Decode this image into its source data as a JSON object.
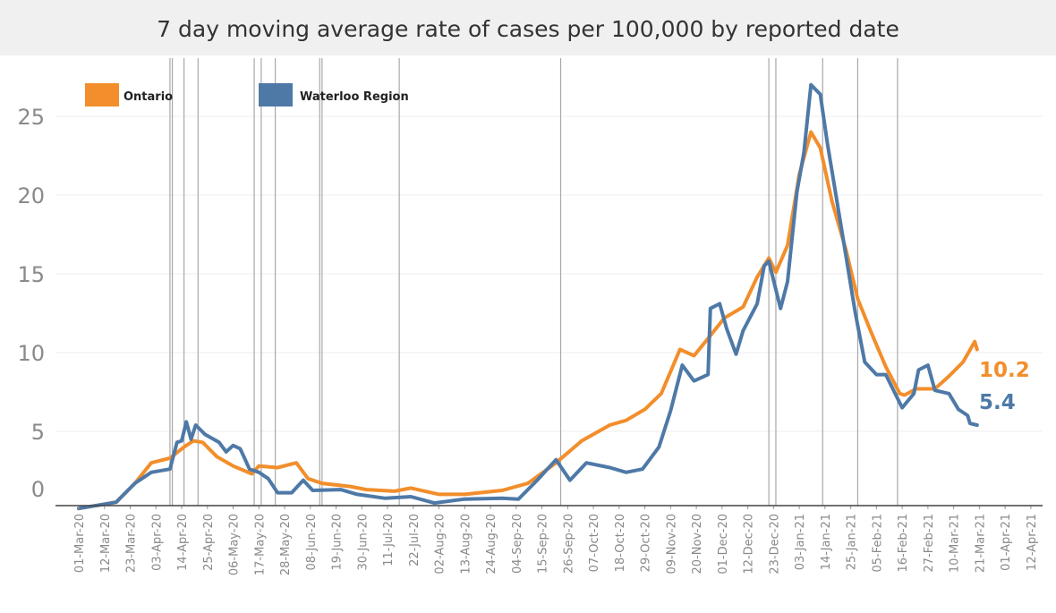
{
  "chart_data": {
    "type": "line",
    "title": "7 day moving average rate of cases per 100,000 by reported date",
    "xlabel": "",
    "ylabel": "",
    "ylim": [
      -0.3,
      27.5
    ],
    "xlim": [
      "2020-02-25",
      "2021-04-20"
    ],
    "yticks": [
      0,
      5,
      10,
      15,
      20,
      25
    ],
    "xticks": [
      "01-Mar-20",
      "12-Mar-20",
      "23-Mar-20",
      "03-Apr-20",
      "14-Apr-20",
      "25-Apr-20",
      "06-May-20",
      "17-May-20",
      "28-May-20",
      "08-Jun-20",
      "19-Jun-20",
      "30-Jun-20",
      "11-Jul-20",
      "22-Jul-20",
      "02-Aug-20",
      "13-Aug-20",
      "24-Aug-20",
      "04-Sep-20",
      "15-Sep-20",
      "26-Sep-20",
      "07-Oct-20",
      "18-Oct-20",
      "29-Oct-20",
      "09-Nov-20",
      "20-Nov-20",
      "01-Dec-20",
      "12-Dec-20",
      "23-Dec-20",
      "03-Jan-21",
      "14-Jan-21",
      "25-Jan-21",
      "05-Feb-21",
      "16-Feb-21",
      "27-Feb-21",
      "10-Mar-21",
      "21-Mar-21",
      "01-Apr-21",
      "12-Apr-21"
    ],
    "grid": "horizontal",
    "legend_position": "top-left",
    "reference_lines": [
      "2020-04-09",
      "2020-04-10",
      "2020-04-15",
      "2020-04-21",
      "2020-05-15",
      "2020-05-18",
      "2020-05-24",
      "2020-06-12",
      "2020-06-13",
      "2020-07-16",
      "2020-09-23",
      "2020-12-21",
      "2020-12-24",
      "2021-01-13",
      "2021-01-28",
      "2021-02-14"
    ],
    "series": [
      {
        "name": "Ontario",
        "color": "#f28e2b",
        "end_label": "10.2",
        "points": [
          [
            "2020-03-01",
            0.1
          ],
          [
            "2020-03-17",
            0.5
          ],
          [
            "2020-03-25",
            1.7
          ],
          [
            "2020-04-01",
            3.0
          ],
          [
            "2020-04-09",
            3.3
          ],
          [
            "2020-04-15",
            4.0
          ],
          [
            "2020-04-19",
            4.4
          ],
          [
            "2020-04-23",
            4.3
          ],
          [
            "2020-04-29",
            3.4
          ],
          [
            "2020-05-06",
            2.8
          ],
          [
            "2020-05-14",
            2.3
          ],
          [
            "2020-05-17",
            2.8
          ],
          [
            "2020-05-25",
            2.7
          ],
          [
            "2020-06-02",
            3.0
          ],
          [
            "2020-06-07",
            2.0
          ],
          [
            "2020-06-13",
            1.7
          ],
          [
            "2020-06-25",
            1.5
          ],
          [
            "2020-07-02",
            1.3
          ],
          [
            "2020-07-14",
            1.2
          ],
          [
            "2020-07-21",
            1.4
          ],
          [
            "2020-08-02",
            1.0
          ],
          [
            "2020-08-13",
            1.0
          ],
          [
            "2020-08-29",
            1.25
          ],
          [
            "2020-09-09",
            1.7
          ],
          [
            "2020-09-21",
            3.0
          ],
          [
            "2020-10-02",
            4.4
          ],
          [
            "2020-10-14",
            5.4
          ],
          [
            "2020-10-21",
            5.7
          ],
          [
            "2020-10-29",
            6.4
          ],
          [
            "2020-11-05",
            7.4
          ],
          [
            "2020-11-13",
            10.2
          ],
          [
            "2020-11-19",
            9.8
          ],
          [
            "2020-11-25",
            10.9
          ],
          [
            "2020-12-02",
            12.2
          ],
          [
            "2020-12-10",
            12.9
          ],
          [
            "2020-12-16",
            14.8
          ],
          [
            "2020-12-21",
            16.0
          ],
          [
            "2020-12-24",
            15.1
          ],
          [
            "2020-12-29",
            16.8
          ],
          [
            "2021-01-03",
            21.3
          ],
          [
            "2021-01-08",
            24.0
          ],
          [
            "2021-01-12",
            23.0
          ],
          [
            "2021-01-17",
            19.6
          ],
          [
            "2021-01-23",
            16.5
          ],
          [
            "2021-01-28",
            13.4
          ],
          [
            "2021-02-03",
            11.2
          ],
          [
            "2021-02-09",
            9.1
          ],
          [
            "2021-02-15",
            7.4
          ],
          [
            "2021-02-17",
            7.3
          ],
          [
            "2021-02-22",
            7.7
          ],
          [
            "2021-03-02",
            7.7
          ],
          [
            "2021-03-08",
            8.5
          ],
          [
            "2021-03-14",
            9.4
          ],
          [
            "2021-03-19",
            10.7
          ],
          [
            "2021-03-20",
            10.2
          ]
        ]
      },
      {
        "name": "Waterloo Region",
        "color": "#4e79a7",
        "end_label": "5.4",
        "points": [
          [
            "2020-03-01",
            0.1
          ],
          [
            "2020-03-17",
            0.5
          ],
          [
            "2020-03-25",
            1.7
          ],
          [
            "2020-04-01",
            2.4
          ],
          [
            "2020-04-09",
            2.6
          ],
          [
            "2020-04-12",
            4.3
          ],
          [
            "2020-04-14",
            4.4
          ],
          [
            "2020-04-16",
            5.6
          ],
          [
            "2020-04-18",
            4.5
          ],
          [
            "2020-04-20",
            5.4
          ],
          [
            "2020-04-24",
            4.8
          ],
          [
            "2020-04-30",
            4.3
          ],
          [
            "2020-05-03",
            3.7
          ],
          [
            "2020-05-06",
            4.1
          ],
          [
            "2020-05-09",
            3.9
          ],
          [
            "2020-05-13",
            2.6
          ],
          [
            "2020-05-17",
            2.4
          ],
          [
            "2020-05-21",
            2.0
          ],
          [
            "2020-05-25",
            1.1
          ],
          [
            "2020-05-31",
            1.1
          ],
          [
            "2020-06-05",
            1.9
          ],
          [
            "2020-06-09",
            1.25
          ],
          [
            "2020-06-21",
            1.3
          ],
          [
            "2020-06-28",
            1.0
          ],
          [
            "2020-07-10",
            0.75
          ],
          [
            "2020-07-21",
            0.85
          ],
          [
            "2020-07-31",
            0.45
          ],
          [
            "2020-08-13",
            0.7
          ],
          [
            "2020-08-29",
            0.75
          ],
          [
            "2020-09-05",
            0.7
          ],
          [
            "2020-09-13",
            1.9
          ],
          [
            "2020-09-21",
            3.2
          ],
          [
            "2020-09-27",
            1.9
          ],
          [
            "2020-10-04",
            3.0
          ],
          [
            "2020-10-14",
            2.7
          ],
          [
            "2020-10-21",
            2.4
          ],
          [
            "2020-10-28",
            2.6
          ],
          [
            "2020-11-04",
            4.0
          ],
          [
            "2020-11-09",
            6.3
          ],
          [
            "2020-11-14",
            9.2
          ],
          [
            "2020-11-19",
            8.2
          ],
          [
            "2020-11-25",
            8.6
          ],
          [
            "2020-11-26",
            12.8
          ],
          [
            "2020-11-30",
            13.1
          ],
          [
            "2020-12-03",
            11.5
          ],
          [
            "2020-12-07",
            9.9
          ],
          [
            "2020-12-10",
            11.4
          ],
          [
            "2020-12-16",
            13.1
          ],
          [
            "2020-12-19",
            15.5
          ],
          [
            "2020-12-21",
            15.8
          ],
          [
            "2020-12-26",
            12.8
          ],
          [
            "2020-12-29",
            14.5
          ],
          [
            "2021-01-02",
            20.2
          ],
          [
            "2021-01-05",
            22.7
          ],
          [
            "2021-01-08",
            27.0
          ],
          [
            "2021-01-12",
            26.4
          ],
          [
            "2021-01-15",
            23.3
          ],
          [
            "2021-01-21",
            17.9
          ],
          [
            "2021-01-27",
            12.5
          ],
          [
            "2021-01-31",
            9.4
          ],
          [
            "2021-02-05",
            8.6
          ],
          [
            "2021-02-09",
            8.6
          ],
          [
            "2021-02-16",
            6.5
          ],
          [
            "2021-02-21",
            7.4
          ],
          [
            "2021-02-23",
            8.9
          ],
          [
            "2021-02-27",
            9.2
          ],
          [
            "2021-03-02",
            7.6
          ],
          [
            "2021-03-08",
            7.4
          ],
          [
            "2021-03-12",
            6.4
          ],
          [
            "2021-03-16",
            6.0
          ],
          [
            "2021-03-17",
            5.5
          ],
          [
            "2021-03-20",
            5.4
          ]
        ]
      }
    ]
  }
}
